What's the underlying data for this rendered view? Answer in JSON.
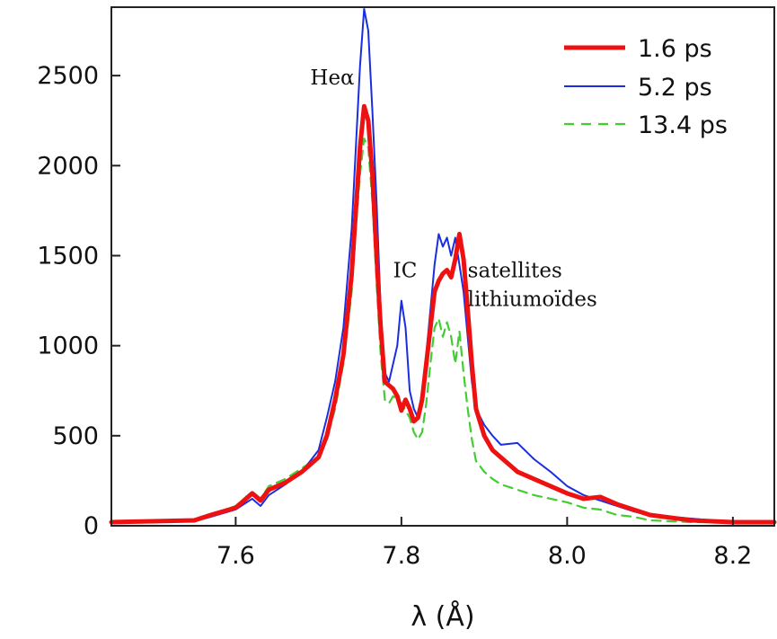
{
  "chart_data": {
    "type": "line",
    "xlabel": "λ (Å)",
    "ylabel": "",
    "title": "",
    "xlim": [
      7.45,
      8.25
    ],
    "ylim": [
      0,
      2880
    ],
    "xticks": [
      {
        "value": 7.6,
        "label": "7.6"
      },
      {
        "value": 7.8,
        "label": "7.8"
      },
      {
        "value": 8.0,
        "label": "8.0"
      },
      {
        "value": 8.2,
        "label": "8.2"
      }
    ],
    "yticks": [
      {
        "value": 0,
        "label": "0"
      },
      {
        "value": 500,
        "label": "500"
      },
      {
        "value": 1000,
        "label": "1000"
      },
      {
        "value": 1500,
        "label": "1500"
      },
      {
        "value": 2000,
        "label": "2000"
      },
      {
        "value": 2500,
        "label": "2500"
      }
    ],
    "legend_position": "top-right",
    "annotations": [
      {
        "text": "Heα",
        "x": 7.69,
        "y": 2450
      },
      {
        "text": "IC",
        "x": 7.79,
        "y": 1380
      },
      {
        "text": "satellites",
        "x": 7.88,
        "y": 1380
      },
      {
        "text": "lithiumoïdes",
        "x": 7.88,
        "y": 1220
      }
    ],
    "series": [
      {
        "name": "1.6 ps",
        "color": "#ee1111",
        "style": "solid-thick",
        "x": [
          7.45,
          7.5,
          7.55,
          7.57,
          7.6,
          7.62,
          7.63,
          7.64,
          7.66,
          7.68,
          7.7,
          7.71,
          7.72,
          7.73,
          7.74,
          7.745,
          7.75,
          7.755,
          7.76,
          7.765,
          7.77,
          7.775,
          7.78,
          7.785,
          7.79,
          7.795,
          7.8,
          7.805,
          7.81,
          7.815,
          7.82,
          7.825,
          7.83,
          7.835,
          7.84,
          7.845,
          7.85,
          7.855,
          7.86,
          7.865,
          7.87,
          7.875,
          7.88,
          7.885,
          7.89,
          7.9,
          7.91,
          7.92,
          7.94,
          7.96,
          7.98,
          8.0,
          8.02,
          8.04,
          8.06,
          8.08,
          8.1,
          8.15,
          8.2,
          8.25
        ],
        "values": [
          20,
          25,
          30,
          60,
          100,
          180,
          140,
          200,
          240,
          300,
          380,
          500,
          700,
          950,
          1400,
          1750,
          2100,
          2330,
          2250,
          1950,
          1500,
          1100,
          800,
          780,
          760,
          720,
          640,
          700,
          650,
          580,
          600,
          700,
          900,
          1100,
          1300,
          1360,
          1400,
          1420,
          1380,
          1480,
          1620,
          1480,
          1200,
          900,
          650,
          500,
          420,
          380,
          300,
          260,
          220,
          180,
          150,
          160,
          120,
          90,
          60,
          30,
          20,
          20
        ]
      },
      {
        "name": "5.2 ps",
        "color": "#1a2ee0",
        "style": "solid-thin",
        "x": [
          7.45,
          7.5,
          7.55,
          7.57,
          7.6,
          7.62,
          7.63,
          7.64,
          7.66,
          7.68,
          7.7,
          7.71,
          7.72,
          7.73,
          7.74,
          7.745,
          7.75,
          7.755,
          7.76,
          7.765,
          7.77,
          7.775,
          7.78,
          7.785,
          7.79,
          7.795,
          7.8,
          7.805,
          7.81,
          7.815,
          7.82,
          7.825,
          7.83,
          7.835,
          7.84,
          7.845,
          7.85,
          7.855,
          7.86,
          7.865,
          7.87,
          7.875,
          7.88,
          7.885,
          7.89,
          7.9,
          7.91,
          7.92,
          7.94,
          7.96,
          7.98,
          8.0,
          8.02,
          8.04,
          8.06,
          8.08,
          8.1,
          8.15,
          8.2,
          8.25
        ],
        "values": [
          15,
          20,
          25,
          50,
          90,
          150,
          110,
          170,
          230,
          300,
          420,
          600,
          800,
          1100,
          1650,
          2100,
          2550,
          2870,
          2750,
          2300,
          1800,
          1200,
          850,
          800,
          900,
          1000,
          1250,
          1100,
          750,
          650,
          600,
          750,
          950,
          1200,
          1450,
          1620,
          1550,
          1600,
          1500,
          1600,
          1450,
          1300,
          1050,
          800,
          650,
          560,
          500,
          450,
          460,
          370,
          300,
          220,
          170,
          140,
          110,
          80,
          60,
          40,
          20,
          15
        ]
      },
      {
        "name": "13.4 ps",
        "color": "#44cc33",
        "style": "dashed",
        "x": [
          7.45,
          7.5,
          7.55,
          7.57,
          7.6,
          7.62,
          7.63,
          7.64,
          7.66,
          7.68,
          7.7,
          7.71,
          7.72,
          7.73,
          7.74,
          7.745,
          7.75,
          7.755,
          7.76,
          7.765,
          7.77,
          7.775,
          7.78,
          7.785,
          7.79,
          7.795,
          7.8,
          7.805,
          7.81,
          7.815,
          7.82,
          7.825,
          7.83,
          7.835,
          7.84,
          7.845,
          7.85,
          7.855,
          7.86,
          7.865,
          7.87,
          7.875,
          7.88,
          7.885,
          7.89,
          7.9,
          7.91,
          7.92,
          7.94,
          7.96,
          7.98,
          8.0,
          8.02,
          8.04,
          8.06,
          8.08,
          8.1,
          8.15,
          8.2,
          8.25
        ],
        "values": [
          20,
          25,
          30,
          60,
          110,
          190,
          150,
          220,
          260,
          320,
          380,
          480,
          650,
          900,
          1300,
          1650,
          1950,
          2150,
          2100,
          1800,
          1350,
          950,
          700,
          680,
          720,
          700,
          680,
          640,
          600,
          520,
          480,
          520,
          680,
          900,
          1100,
          1150,
          1050,
          1130,
          1050,
          900,
          1080,
          850,
          650,
          480,
          360,
          300,
          260,
          230,
          200,
          170,
          150,
          130,
          100,
          90,
          60,
          50,
          30,
          20,
          20,
          20
        ]
      }
    ]
  }
}
